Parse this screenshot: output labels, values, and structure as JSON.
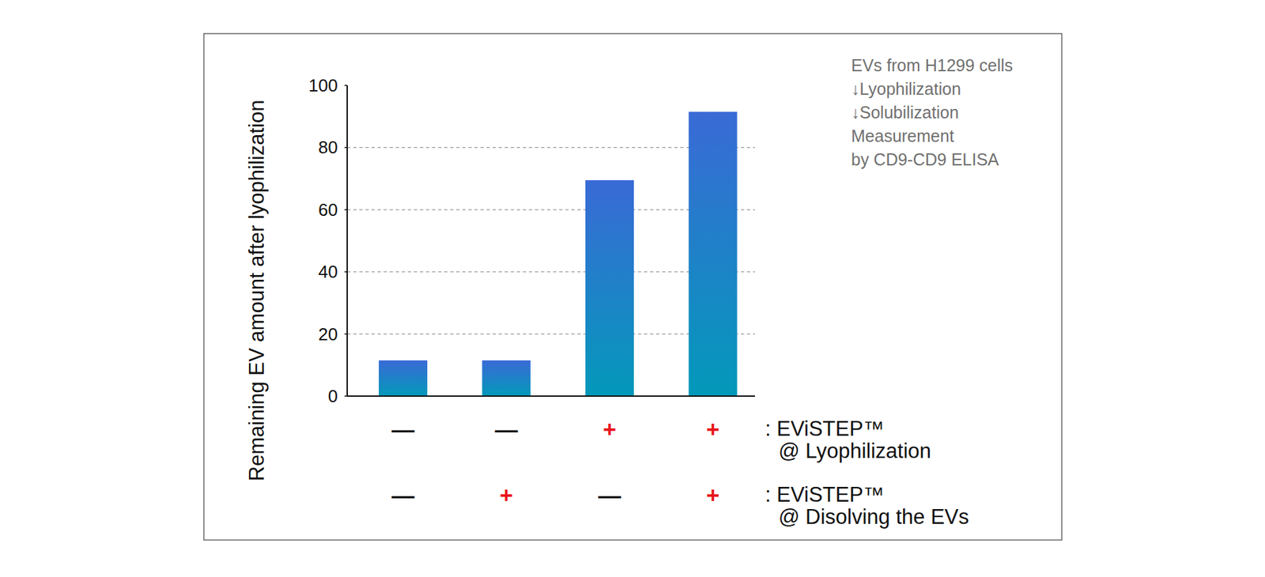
{
  "chart_data": {
    "type": "bar",
    "y_label": "Remaining EV amount after lyophilization",
    "categories": [
      null,
      null,
      null,
      null
    ],
    "values": [
      11.5,
      11.5,
      69.5,
      91.5
    ],
    "color": "#3a6ad6",
    "ylim": [
      0,
      100
    ],
    "yticks": [
      0,
      20,
      40,
      60,
      80,
      100
    ],
    "grid": true,
    "annotations": [
      "EVs from H1299 cells",
      "↓Lyophilization",
      "↓Solubilization",
      "Measurement",
      "by CD9-CD9 ELISA"
    ],
    "conditions": [
      {
        "label": ": EViSTEP™",
        "sublabel": "@ Lyophilization",
        "signs": [
          "—",
          "—",
          "+",
          "+"
        ],
        "colors": [
          "#111111",
          "#111111",
          "#e8141c",
          "#e8141c"
        ]
      },
      {
        "label": ": EViSTEP™",
        "sublabel": "@ Disolving the EVs",
        "signs": [
          "—",
          "+",
          "—",
          "+"
        ],
        "colors": [
          "#111111",
          "#e8141c",
          "#111111",
          "#e8141c"
        ]
      }
    ]
  }
}
